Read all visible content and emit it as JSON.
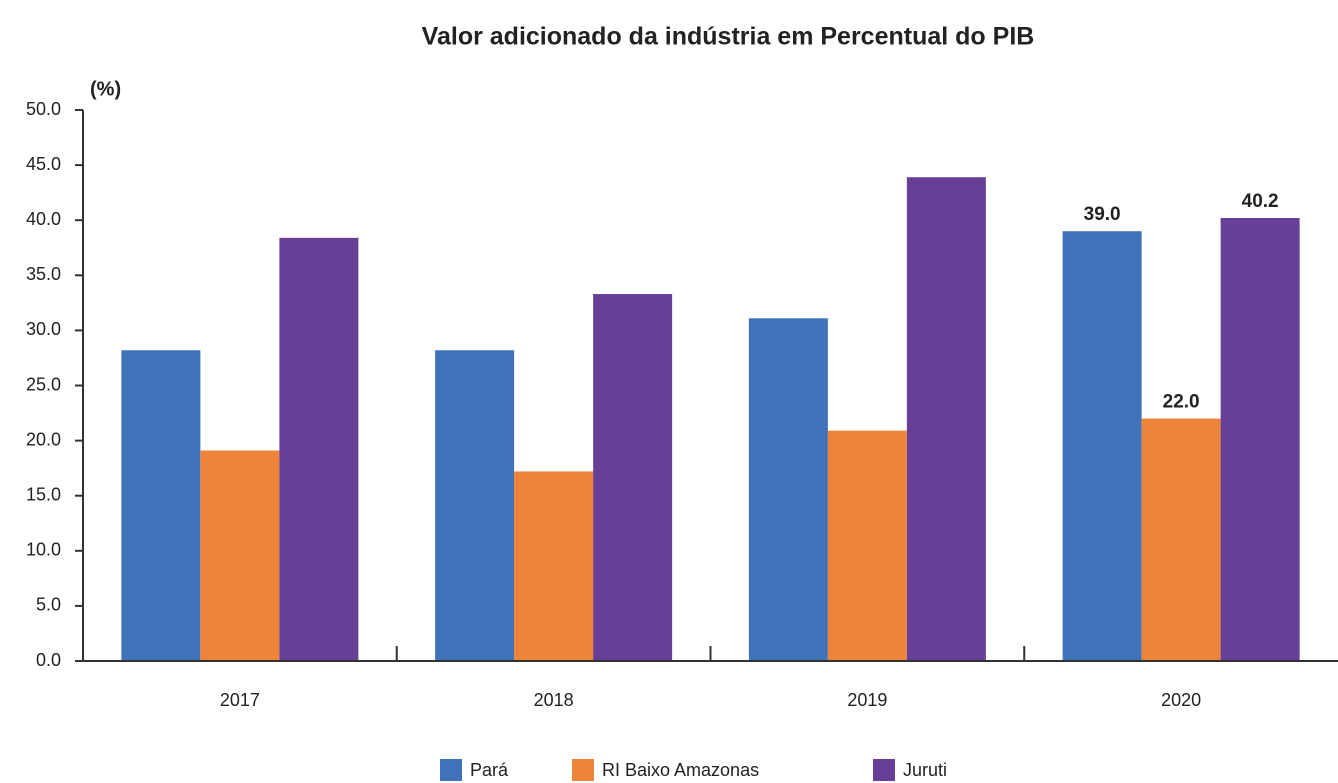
{
  "chart_data": {
    "type": "bar",
    "title": "Valor adicionado da indústria em Percentual do PIB",
    "y_label": "(%)",
    "categories": [
      "2017",
      "2018",
      "2019",
      "2020"
    ],
    "series": [
      {
        "name": "Pará",
        "color": "#3f72b9",
        "values": [
          28.2,
          28.2,
          31.1,
          39.0
        ],
        "value_labels": [
          null,
          null,
          null,
          "39.0"
        ]
      },
      {
        "name": "RI Baixo Amazonas",
        "color": "#ee843a",
        "values": [
          19.1,
          17.2,
          20.9,
          22.0
        ],
        "value_labels": [
          null,
          null,
          null,
          "22.0"
        ]
      },
      {
        "name": "Juruti",
        "color": "#673f97",
        "values": [
          38.4,
          33.3,
          43.9,
          40.2
        ],
        "value_labels": [
          null,
          null,
          null,
          "40.2"
        ]
      }
    ],
    "ylim": [
      0,
      50
    ],
    "yticks": [
      {
        "value": 0,
        "label": "0.0"
      },
      {
        "value": 5,
        "label": "5.0"
      },
      {
        "value": 10,
        "label": "10.0"
      },
      {
        "value": 15,
        "label": "15.0"
      },
      {
        "value": 20,
        "label": "20.0"
      },
      {
        "value": 25,
        "label": "25.0"
      },
      {
        "value": 30,
        "label": "30.0"
      },
      {
        "value": 35,
        "label": "35.0"
      },
      {
        "value": 40,
        "label": "40.0"
      },
      {
        "value": 45,
        "label": "45.0"
      },
      {
        "value": 50,
        "label": "50.0"
      }
    ],
    "grid": false,
    "legend": "bottom"
  }
}
